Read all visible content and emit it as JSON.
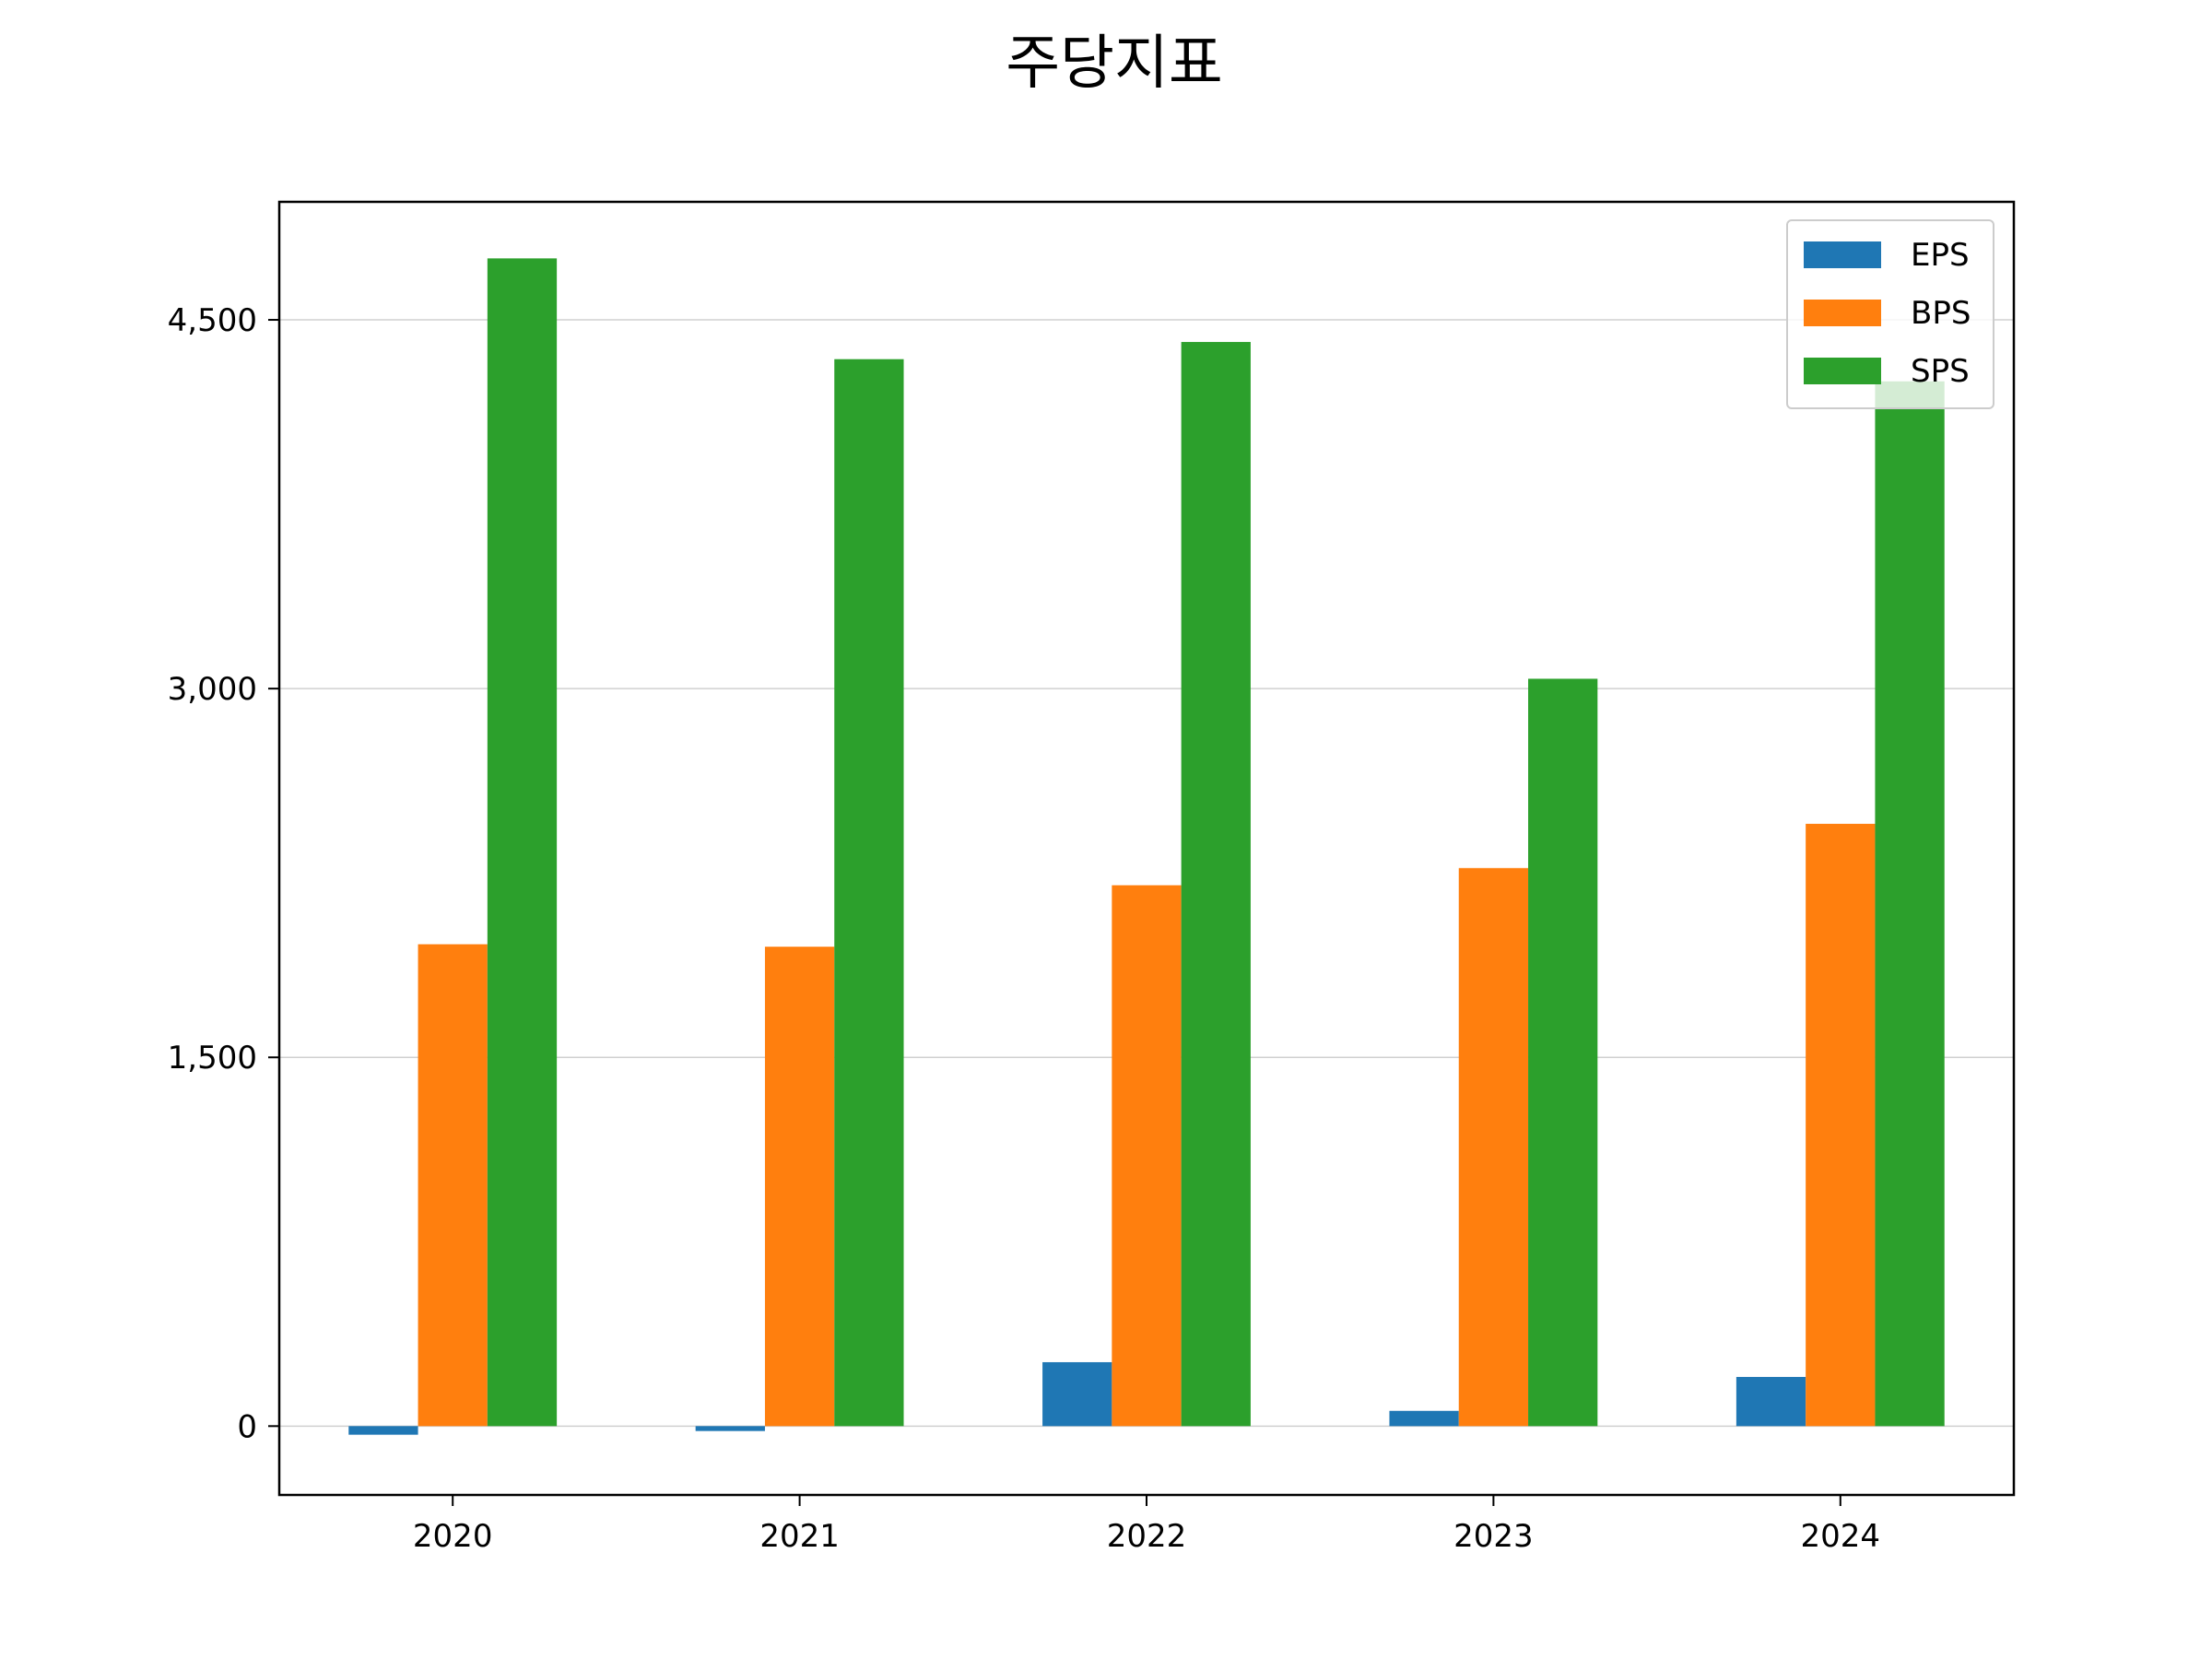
{
  "chart_data": {
    "type": "bar",
    "title": "주당지표",
    "xlabel": "",
    "ylabel": "",
    "categories": [
      "2020",
      "2021",
      "2022",
      "2023",
      "2024"
    ],
    "series": [
      {
        "name": "EPS",
        "color": "#1f77b4",
        "values": [
          -35,
          -20,
          260,
          62,
          200
        ]
      },
      {
        "name": "BPS",
        "color": "#ff7f0e",
        "values": [
          1960,
          1950,
          2200,
          2270,
          2450
        ]
      },
      {
        "name": "SPS",
        "color": "#2ca02c",
        "values": [
          4750,
          4340,
          4410,
          3040,
          4250
        ]
      }
    ],
    "ylim": [
      -280,
      4980
    ],
    "yticks": [
      0,
      1500,
      3000,
      4500
    ],
    "ytick_labels": [
      "0",
      "1,500",
      "3,000",
      "4,500"
    ],
    "grid": "horizontal",
    "legend_position": "top-right"
  }
}
